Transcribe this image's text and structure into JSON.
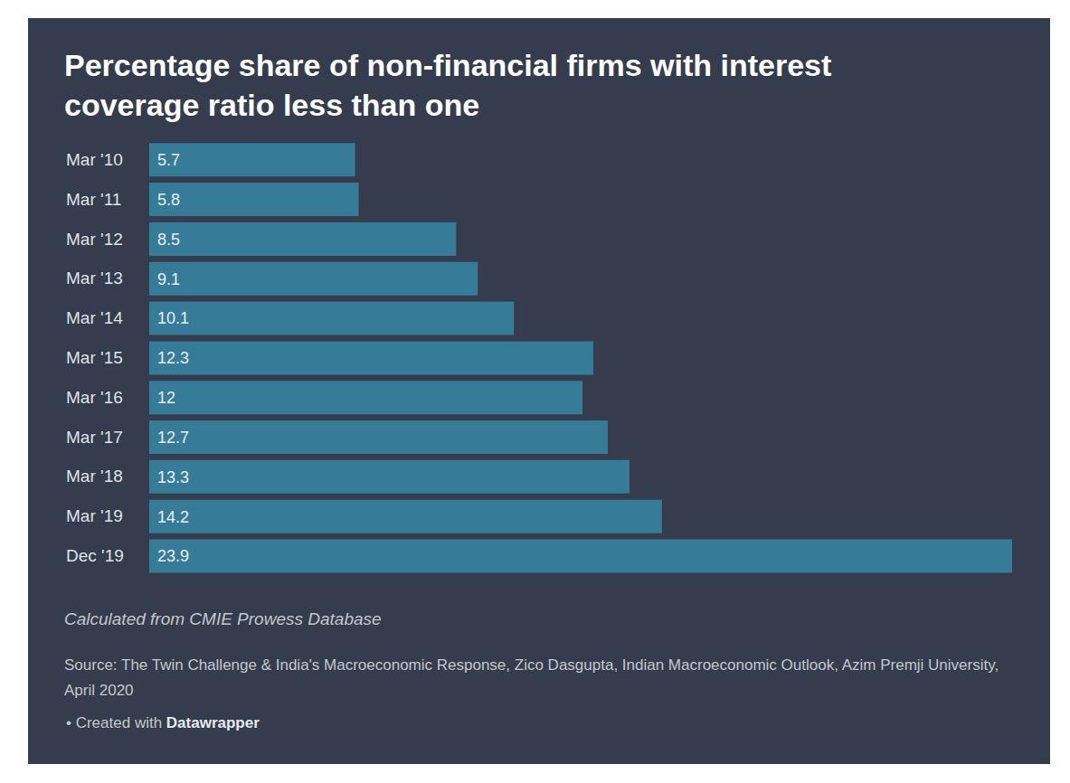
{
  "chart_data": {
    "type": "bar",
    "title": "Percentage share of non-financial firms with interest coverage ratio less than one",
    "categories": [
      "Mar '10",
      "Mar '11",
      "Mar '12",
      "Mar '13",
      "Mar '14",
      "Mar '15",
      "Mar '16",
      "Mar '17",
      "Mar '18",
      "Mar '19",
      "Dec '19"
    ],
    "values": [
      5.7,
      5.8,
      8.5,
      9.1,
      10.1,
      12.3,
      12,
      12.7,
      13.3,
      14.2,
      23.9
    ],
    "color": "#367c98",
    "orientation": "horizontal",
    "xlim": [
      0,
      23.9
    ],
    "data_labels": true,
    "tick_labels": "y",
    "grid": false,
    "note": "Calculated from CMIE Prowess Database",
    "source": "Source: The Twin Challenge & India's Macroeconomic Response, Zico Dasgupta, Indian Macroeconomic Outlook, Azim Premji University, April 2020",
    "credit": {
      "text": "• Created with",
      "bold": "Datawrapper"
    }
  }
}
